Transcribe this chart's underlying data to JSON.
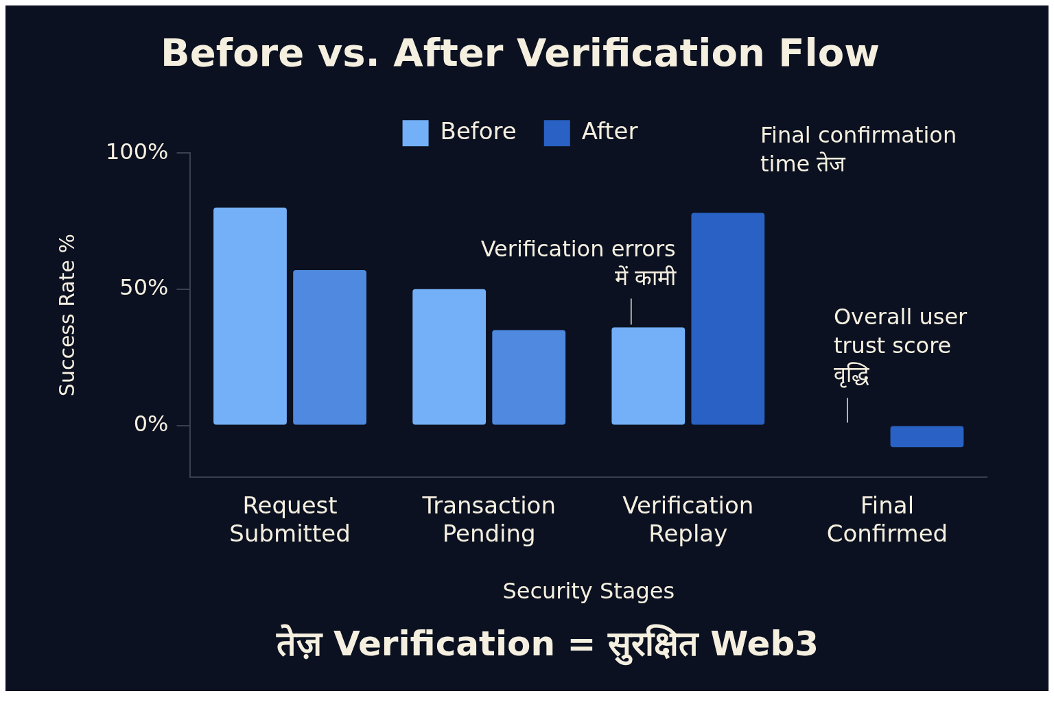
{
  "chart_data": {
    "type": "bar",
    "title": "Before vs. After Verification Flow",
    "xlabel": "Security Stages",
    "ylabel": "Success Rate %",
    "categories": [
      "Request Submitted",
      "Transaction Pending",
      "Verification Replay",
      "Final Confirmed"
    ],
    "series": [
      {
        "name": "Before",
        "color": "#74b0f7",
        "colors": [
          "#74b0f7",
          "#74b0f7",
          "#74b0f7",
          "#74b0f7"
        ],
        "values": [
          80,
          50,
          36,
          0
        ]
      },
      {
        "name": "After",
        "color": "#2962c4",
        "colors": [
          "#4f8ae0",
          "#4f8ae0",
          "#2962c4",
          "#2962c4"
        ],
        "values": [
          57,
          35,
          78,
          -8
        ]
      }
    ],
    "ylim": [
      -19,
      100
    ],
    "yticks": [
      {
        "value": 0,
        "label": "0%"
      },
      {
        "value": 50,
        "label": "50%"
      },
      {
        "value": 100,
        "label": "100%"
      }
    ],
    "grid": false,
    "legend": "top",
    "annotations": [
      {
        "text": "Verification errors\nमें कामी",
        "x": "Verification Replay",
        "y": 36
      },
      "Final confirmation\ntime तेज",
      {
        "text": "Overall user\ntrust score\nवृद्धि",
        "x": "Final Confirmed",
        "y": 0
      },
      "तेज़ Verification = सुरक्षित Web3"
    ]
  }
}
